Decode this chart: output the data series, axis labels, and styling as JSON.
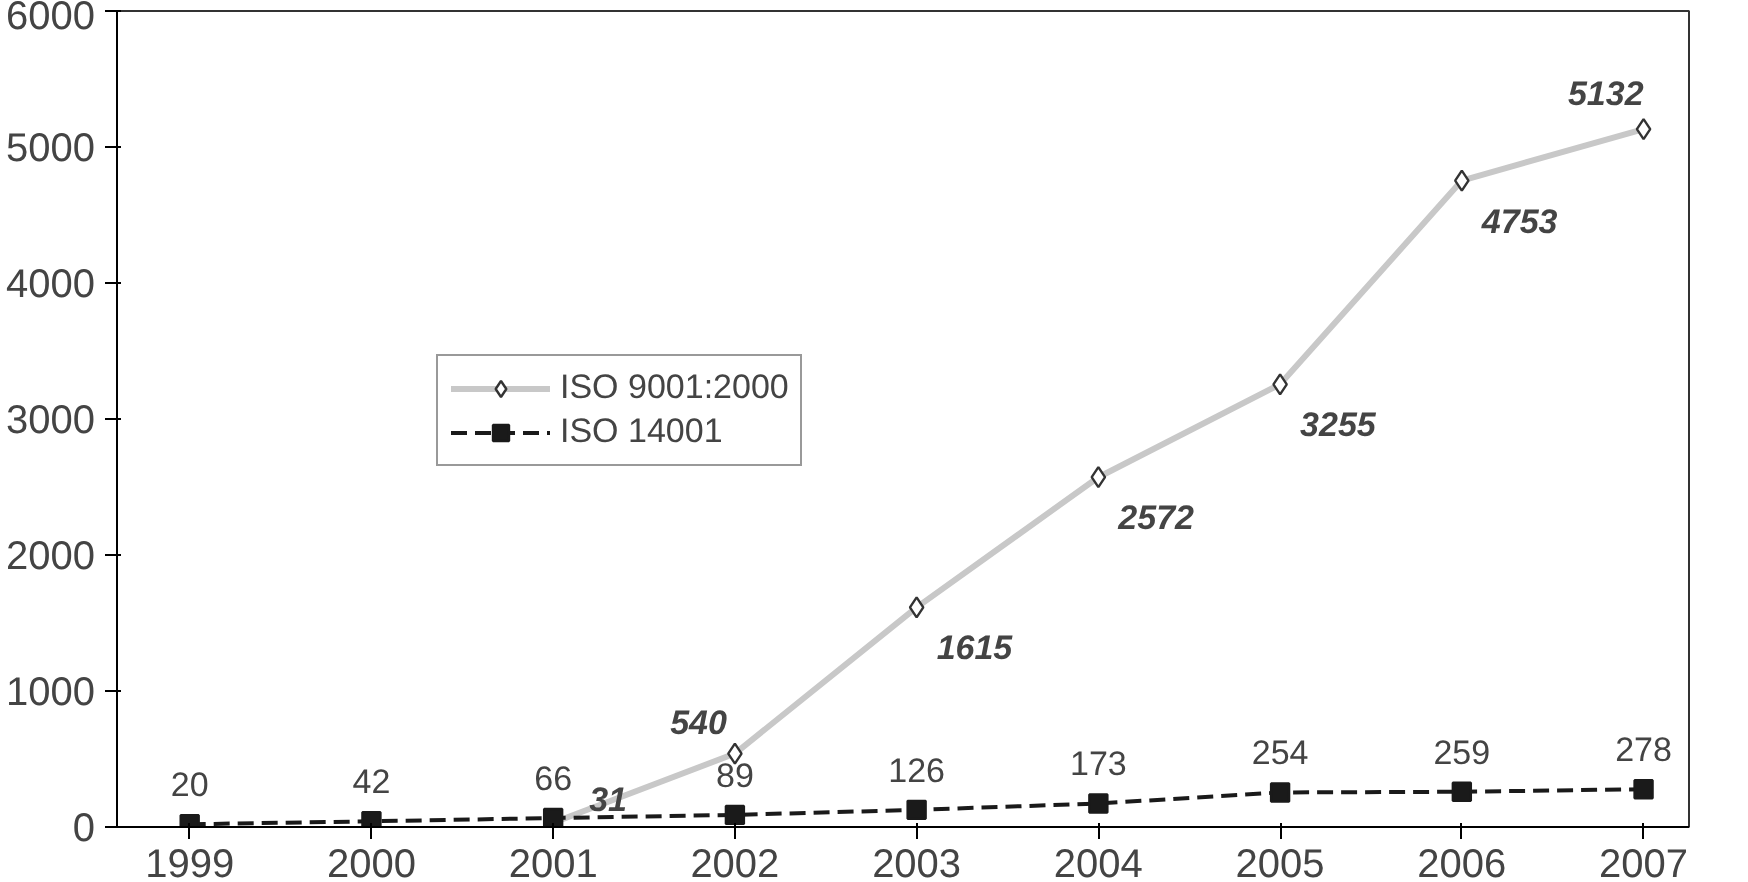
{
  "chart_data": {
    "type": "line",
    "x": [
      1999,
      2000,
      2001,
      2002,
      2003,
      2004,
      2005,
      2006,
      2007
    ],
    "series": [
      {
        "name": "ISO 9001:2000",
        "color": "#c8c8c8",
        "marker": "diamond",
        "line_style": "solid",
        "values": [
          null,
          null,
          31,
          540,
          1615,
          2572,
          3255,
          4753,
          5132
        ]
      },
      {
        "name": "ISO 14001",
        "color": "#1a1a1a",
        "marker": "square",
        "line_style": "dashed",
        "values": [
          20,
          42,
          66,
          89,
          126,
          173,
          254,
          259,
          278
        ]
      }
    ],
    "xlim": [
      1998.6,
      2007.25
    ],
    "xticks": [
      1999,
      2000,
      2001,
      2002,
      2003,
      2004,
      2005,
      2006,
      2007
    ],
    "ylim": [
      0,
      6000
    ],
    "yticks": [
      0,
      1000,
      2000,
      3000,
      4000,
      5000,
      6000
    ],
    "grid": false,
    "legend": "top left",
    "data_labels": true
  }
}
